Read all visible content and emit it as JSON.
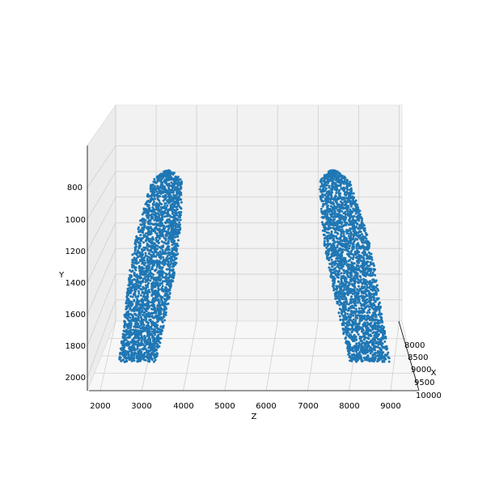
{
  "chart_data": {
    "type": "scatter",
    "projection": "3d",
    "title": "",
    "xlabel": "Z",
    "ylabel": "Y",
    "zlabel": "X",
    "x_ticks": [
      "2000",
      "3000",
      "4000",
      "5000",
      "6000",
      "7000",
      "8000",
      "9000"
    ],
    "y_ticks": [
      "800",
      "1000",
      "1200",
      "1400",
      "1600",
      "1800",
      "2000"
    ],
    "z_ticks": [
      "8000",
      "8500",
      "9000",
      "9500",
      "10000"
    ],
    "xlim": [
      1750,
      9650
    ],
    "ylim": [
      600,
      2050
    ],
    "y_inverted": true,
    "grid": true,
    "marker_color": "#1f77b4",
    "clusters": [
      {
        "name": "",
        "z_range": [
          2400,
          4300
        ],
        "y_range": [
          690,
          1900
        ],
        "top_center": [
          3650,
          690
        ],
        "bottom_center": [
          2900,
          1900
        ],
        "top_halfwidth": 320,
        "mid_halfwidth": 550,
        "bottom_halfwidth": 450
      },
      {
        "name": "",
        "z_range": [
          7000,
          9100
        ],
        "y_range": [
          690,
          1900
        ],
        "top_center": [
          7600,
          690
        ],
        "bottom_center": [
          8500,
          1900
        ],
        "top_halfwidth": 320,
        "mid_halfwidth": 560,
        "bottom_halfwidth": 480
      }
    ]
  }
}
